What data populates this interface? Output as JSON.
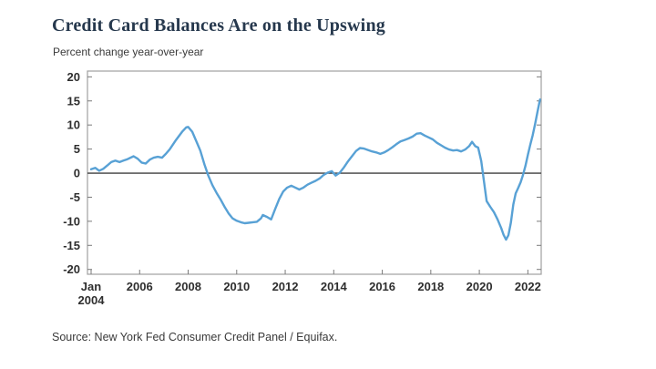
{
  "header": {
    "title": "Credit Card Balances Are on the Upswing",
    "subtitle": "Percent change year-over-year"
  },
  "footer": {
    "source": "Source: New York Fed Consumer Credit Panel / Equifax."
  },
  "colors": {
    "line": "#58a1d5",
    "title_text": "#26384d",
    "body_text": "#3a3a3a",
    "axis_label": "#2e2e2e",
    "frame": "#a0a0a0",
    "tick": "#7a7a7a",
    "zero_line": "#3f3f3f",
    "background": "#ffffff"
  },
  "chart_data": {
    "type": "line",
    "title": "Credit Card Balances Are on the Upswing",
    "ylabel": "Percent change year-over-year",
    "xlabel": "",
    "grid": false,
    "legend": "none",
    "xlim": [
      2003.85,
      2022.55
    ],
    "ylim": [
      -21.0,
      21.2
    ],
    "yticks": [
      20,
      15,
      10,
      5,
      0,
      -5,
      -10,
      -15,
      -20
    ],
    "xticks": [
      {
        "pos": 2004,
        "lines": [
          "Jan",
          "2004"
        ]
      },
      {
        "pos": 2006,
        "lines": [
          "2006"
        ]
      },
      {
        "pos": 2008,
        "lines": [
          "2008"
        ]
      },
      {
        "pos": 2010,
        "lines": [
          "2010"
        ]
      },
      {
        "pos": 2012,
        "lines": [
          "2012"
        ]
      },
      {
        "pos": 2014,
        "lines": [
          "2014"
        ]
      },
      {
        "pos": 2016,
        "lines": [
          "2016"
        ]
      },
      {
        "pos": 2018,
        "lines": [
          "2018"
        ]
      },
      {
        "pos": 2020,
        "lines": [
          "2020"
        ]
      },
      {
        "pos": 2022,
        "lines": [
          "2022"
        ]
      }
    ],
    "zero_line": true,
    "series": [
      {
        "name": "Credit card balances, percent change year-over-year",
        "color": "#58a1d5",
        "points": [
          [
            2004.0,
            0.8
          ],
          [
            2004.17,
            1.1
          ],
          [
            2004.33,
            0.5
          ],
          [
            2004.5,
            0.9
          ],
          [
            2004.67,
            1.6
          ],
          [
            2004.83,
            2.3
          ],
          [
            2005.0,
            2.6
          ],
          [
            2005.17,
            2.3
          ],
          [
            2005.33,
            2.6
          ],
          [
            2005.5,
            2.9
          ],
          [
            2005.75,
            3.5
          ],
          [
            2005.92,
            3.0
          ],
          [
            2006.08,
            2.2
          ],
          [
            2006.25,
            2.0
          ],
          [
            2006.42,
            2.8
          ],
          [
            2006.58,
            3.2
          ],
          [
            2006.75,
            3.4
          ],
          [
            2006.92,
            3.2
          ],
          [
            2007.08,
            4.0
          ],
          [
            2007.25,
            5.0
          ],
          [
            2007.5,
            6.9
          ],
          [
            2007.75,
            8.6
          ],
          [
            2007.92,
            9.5
          ],
          [
            2008.0,
            9.6
          ],
          [
            2008.17,
            8.6
          ],
          [
            2008.33,
            6.7
          ],
          [
            2008.5,
            4.7
          ],
          [
            2008.67,
            1.8
          ],
          [
            2008.83,
            -0.5
          ],
          [
            2009.0,
            -2.5
          ],
          [
            2009.17,
            -4.1
          ],
          [
            2009.33,
            -5.4
          ],
          [
            2009.5,
            -7.0
          ],
          [
            2009.67,
            -8.4
          ],
          [
            2009.83,
            -9.4
          ],
          [
            2010.0,
            -9.9
          ],
          [
            2010.17,
            -10.2
          ],
          [
            2010.33,
            -10.4
          ],
          [
            2010.5,
            -10.3
          ],
          [
            2010.67,
            -10.2
          ],
          [
            2010.83,
            -10.1
          ],
          [
            2011.0,
            -9.4
          ],
          [
            2011.08,
            -8.7
          ],
          [
            2011.25,
            -9.1
          ],
          [
            2011.42,
            -9.6
          ],
          [
            2011.58,
            -7.5
          ],
          [
            2011.75,
            -5.4
          ],
          [
            2011.92,
            -3.8
          ],
          [
            2012.08,
            -3.0
          ],
          [
            2012.25,
            -2.6
          ],
          [
            2012.42,
            -3.0
          ],
          [
            2012.58,
            -3.4
          ],
          [
            2012.75,
            -3.0
          ],
          [
            2012.92,
            -2.4
          ],
          [
            2013.08,
            -2.0
          ],
          [
            2013.25,
            -1.6
          ],
          [
            2013.42,
            -1.1
          ],
          [
            2013.58,
            -0.4
          ],
          [
            2013.75,
            0.1
          ],
          [
            2013.92,
            0.4
          ],
          [
            2014.08,
            -0.5
          ],
          [
            2014.25,
            0.1
          ],
          [
            2014.42,
            1.2
          ],
          [
            2014.58,
            2.4
          ],
          [
            2014.75,
            3.5
          ],
          [
            2014.92,
            4.6
          ],
          [
            2015.08,
            5.2
          ],
          [
            2015.25,
            5.1
          ],
          [
            2015.42,
            4.8
          ],
          [
            2015.58,
            4.5
          ],
          [
            2015.75,
            4.3
          ],
          [
            2015.92,
            4.0
          ],
          [
            2016.08,
            4.3
          ],
          [
            2016.25,
            4.8
          ],
          [
            2016.42,
            5.4
          ],
          [
            2016.58,
            6.0
          ],
          [
            2016.75,
            6.6
          ],
          [
            2016.92,
            6.9
          ],
          [
            2017.08,
            7.2
          ],
          [
            2017.25,
            7.6
          ],
          [
            2017.42,
            8.2
          ],
          [
            2017.58,
            8.3
          ],
          [
            2017.75,
            7.8
          ],
          [
            2017.92,
            7.4
          ],
          [
            2018.08,
            7.0
          ],
          [
            2018.25,
            6.3
          ],
          [
            2018.42,
            5.8
          ],
          [
            2018.58,
            5.3
          ],
          [
            2018.75,
            4.9
          ],
          [
            2018.92,
            4.7
          ],
          [
            2019.08,
            4.8
          ],
          [
            2019.25,
            4.5
          ],
          [
            2019.42,
            4.9
          ],
          [
            2019.58,
            5.6
          ],
          [
            2019.7,
            6.5
          ],
          [
            2019.83,
            5.6
          ],
          [
            2019.95,
            5.3
          ],
          [
            2020.08,
            2.5
          ],
          [
            2020.2,
            -2.0
          ],
          [
            2020.3,
            -5.8
          ],
          [
            2020.45,
            -7.0
          ],
          [
            2020.6,
            -8.1
          ],
          [
            2020.75,
            -9.6
          ],
          [
            2020.9,
            -11.4
          ],
          [
            2021.0,
            -12.8
          ],
          [
            2021.1,
            -13.8
          ],
          [
            2021.2,
            -12.9
          ],
          [
            2021.3,
            -10.3
          ],
          [
            2021.4,
            -6.5
          ],
          [
            2021.5,
            -4.2
          ],
          [
            2021.6,
            -3.1
          ],
          [
            2021.7,
            -1.9
          ],
          [
            2021.8,
            -0.4
          ],
          [
            2021.9,
            1.5
          ],
          [
            2022.0,
            3.8
          ],
          [
            2022.1,
            5.9
          ],
          [
            2022.2,
            7.9
          ],
          [
            2022.3,
            10.2
          ],
          [
            2022.4,
            12.8
          ],
          [
            2022.5,
            15.3
          ]
        ]
      }
    ]
  }
}
